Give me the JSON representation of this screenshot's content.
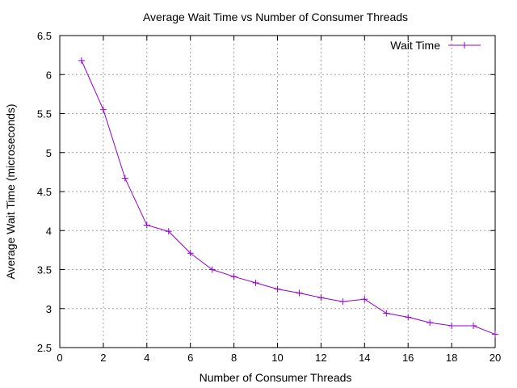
{
  "chart_data": {
    "type": "line",
    "title": "Average Wait Time vs Number of Consumer Threads",
    "xlabel": "Number of Consumer Threads",
    "ylabel": "Average Wait Time (microseconds)",
    "xlim": [
      0,
      20
    ],
    "ylim": [
      2.5,
      6.5
    ],
    "x_ticks": [
      0,
      2,
      4,
      6,
      8,
      10,
      12,
      14,
      16,
      18,
      20
    ],
    "y_ticks": [
      2.5,
      3,
      3.5,
      4,
      4.5,
      5,
      5.5,
      6,
      6.5
    ],
    "y_tick_labels": [
      "2.5",
      "3",
      "3.5",
      "4",
      "4.5",
      "5",
      "5.5",
      "6",
      "6.5"
    ],
    "grid": true,
    "legend_position": "top-right",
    "series": [
      {
        "name": "Wait Time",
        "color": "#9400d3",
        "marker": "plus",
        "x": [
          1,
          2,
          3,
          4,
          5,
          6,
          7,
          8,
          9,
          10,
          11,
          12,
          13,
          14,
          15,
          16,
          17,
          18,
          19,
          20
        ],
        "y": [
          6.18,
          5.55,
          4.67,
          4.07,
          3.99,
          3.71,
          3.5,
          3.41,
          3.33,
          3.25,
          3.2,
          3.14,
          3.09,
          3.12,
          2.94,
          2.89,
          2.82,
          2.78,
          2.78,
          2.67
        ]
      }
    ]
  }
}
